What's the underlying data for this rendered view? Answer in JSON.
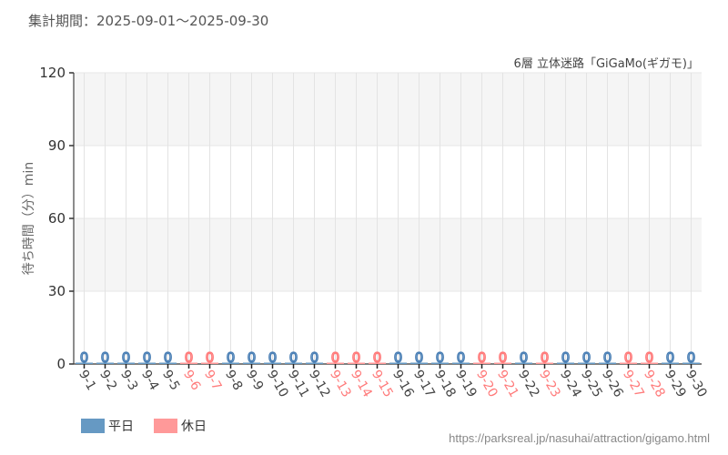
{
  "header": {
    "period": "集計期間：2025-09-01～2025-09-30",
    "subtitle": "6層 立体迷路「GiGaMo(ギガモ)」"
  },
  "legend": {
    "weekday_label": "平日",
    "holiday_label": "休日"
  },
  "footer": {
    "url": "https://parksreal.jp/nasuhai/attraction/gigamo.html"
  },
  "colors": {
    "weekday": "#6699c3",
    "holiday": "#ff9999",
    "weekday_text": "#4a7fb5",
    "holiday_text": "#ff7a7a"
  },
  "chart_data": {
    "type": "bar",
    "title": "6層 立体迷路「GiGaMo(ギガモ)」",
    "subtitle": "集計期間：2025-09-01～2025-09-30",
    "xlabel": "",
    "ylabel": "待ち時間（分）min",
    "ylim": [
      0,
      120
    ],
    "yticks": [
      0,
      30,
      60,
      90,
      120
    ],
    "grid": true,
    "legend_position": "bottom-left",
    "categories": [
      "9-1",
      "9-2",
      "9-3",
      "9-4",
      "9-5",
      "9-6",
      "9-7",
      "9-8",
      "9-9",
      "9-10",
      "9-11",
      "9-12",
      "9-13",
      "9-14",
      "9-15",
      "9-16",
      "9-17",
      "9-18",
      "9-19",
      "9-20",
      "9-21",
      "9-22",
      "9-23",
      "9-24",
      "9-25",
      "9-26",
      "9-27",
      "9-28",
      "9-29",
      "9-30"
    ],
    "day_type": [
      "平日",
      "平日",
      "平日",
      "平日",
      "平日",
      "休日",
      "休日",
      "平日",
      "平日",
      "平日",
      "平日",
      "平日",
      "休日",
      "休日",
      "休日",
      "平日",
      "平日",
      "平日",
      "平日",
      "休日",
      "休日",
      "平日",
      "休日",
      "平日",
      "平日",
      "平日",
      "休日",
      "休日",
      "平日",
      "平日"
    ],
    "values": [
      0,
      0,
      0,
      0,
      0,
      0,
      0,
      0,
      0,
      0,
      0,
      0,
      0,
      0,
      0,
      0,
      0,
      0,
      0,
      0,
      0,
      0,
      0,
      0,
      0,
      0,
      0,
      0,
      0,
      0
    ],
    "series": [
      {
        "name": "平日",
        "color": "#6699c3"
      },
      {
        "name": "休日",
        "color": "#ff9999"
      }
    ]
  }
}
